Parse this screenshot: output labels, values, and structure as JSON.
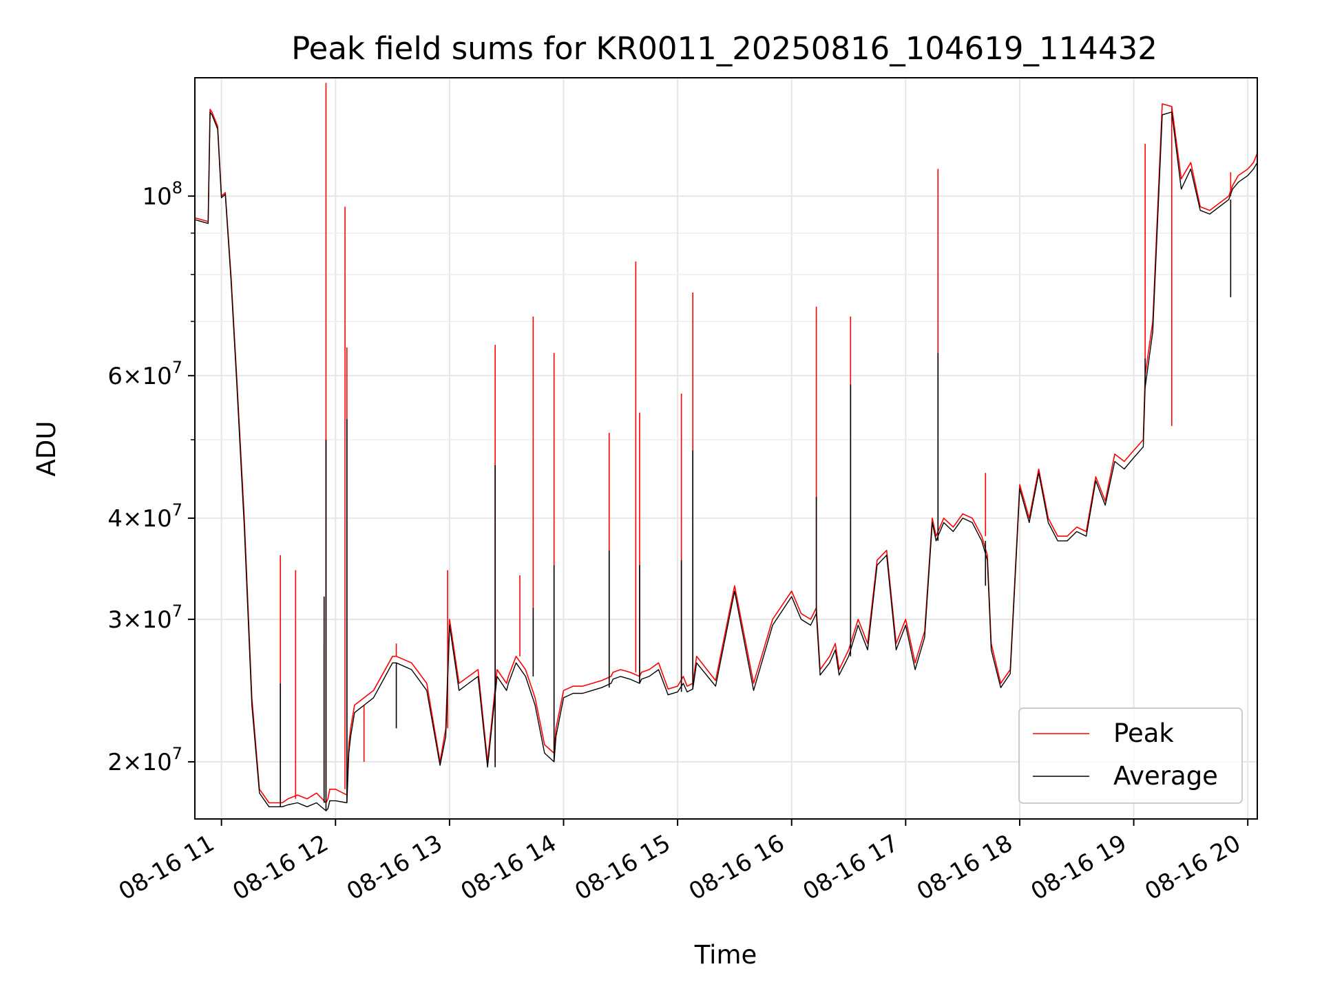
{
  "chart_data": {
    "type": "line",
    "title": "Peak field sums for KR0011_20250816_104619_114432",
    "xlabel": "Time",
    "ylabel": "ADU",
    "y_scale": "log",
    "ylim": [
      17000000,
      140000000
    ],
    "xlim": [
      "08-16 10:46",
      "08-16 20:05"
    ],
    "grid": true,
    "legend_position": "lower-right",
    "x_ticks": [
      "08-16 11",
      "08-16 12",
      "08-16 13",
      "08-16 14",
      "08-16 15",
      "08-16 16",
      "08-16 17",
      "08-16 18",
      "08-16 19",
      "08-16 20"
    ],
    "y_ticks_major": [
      {
        "value": 20000000,
        "mantissa": "2",
        "exponent": "7"
      },
      {
        "value": 30000000,
        "mantissa": "3",
        "exponent": "7"
      },
      {
        "value": 40000000,
        "mantissa": "4",
        "exponent": "7"
      },
      {
        "value": 60000000,
        "mantissa": "6",
        "exponent": "7"
      },
      {
        "value": 100000000,
        "mantissa": "",
        "exponent": "8"
      }
    ],
    "y_ticks_minor": [
      50000000,
      70000000,
      80000000,
      90000000
    ],
    "series": [
      {
        "name": "Peak",
        "color": "#ff0000",
        "x": [
          "08-16 10:46",
          "08-16 10:53",
          "08-16 10:54",
          "08-16 10:55",
          "08-16 10:58",
          "08-16 11:00",
          "08-16 11:02",
          "08-16 11:05",
          "08-16 11:08",
          "08-16 11:12",
          "08-16 11:16",
          "08-16 11:20",
          "08-16 11:25",
          "08-16 11:30",
          "08-16 11:32",
          "08-16 11:35",
          "08-16 11:40",
          "08-16 11:45",
          "08-16 11:50",
          "08-16 11:55",
          "08-16 11:56",
          "08-16 11:57",
          "08-16 12:00",
          "08-16 12:06",
          "08-16 12:07",
          "08-16 12:08",
          "08-16 12:10",
          "08-16 12:20",
          "08-16 12:30",
          "08-16 12:32",
          "08-16 12:40",
          "08-16 12:48",
          "08-16 12:55",
          "08-16 12:58",
          "08-16 13:00",
          "08-16 13:05",
          "08-16 13:10",
          "08-16 13:15",
          "08-16 13:20",
          "08-16 13:25",
          "08-16 13:30",
          "08-16 13:31",
          "08-16 13:35",
          "08-16 13:40",
          "08-16 13:45",
          "08-16 13:50",
          "08-16 13:55",
          "08-16 13:56",
          "08-16 14:00",
          "08-16 14:05",
          "08-16 14:10",
          "08-16 14:15",
          "08-16 14:20",
          "08-16 14:25",
          "08-16 14:26",
          "08-16 14:30",
          "08-16 14:35",
          "08-16 14:40",
          "08-16 14:41",
          "08-16 14:45",
          "08-16 14:50",
          "08-16 14:55",
          "08-16 15:00",
          "08-16 15:03",
          "08-16 15:05",
          "08-16 15:08",
          "08-16 15:10",
          "08-16 15:20",
          "08-16 15:30",
          "08-16 15:40",
          "08-16 15:50",
          "08-16 16:00",
          "08-16 16:05",
          "08-16 16:10",
          "08-16 16:13",
          "08-16 16:15",
          "08-16 16:20",
          "08-16 16:23",
          "08-16 16:25",
          "08-16 16:30",
          "08-16 16:35",
          "08-16 16:40",
          "08-16 16:45",
          "08-16 16:50",
          "08-16 16:55",
          "08-16 17:00",
          "08-16 17:05",
          "08-16 17:10",
          "08-16 17:14",
          "08-16 17:16",
          "08-16 17:20",
          "08-16 17:25",
          "08-16 17:30",
          "08-16 17:35",
          "08-16 17:40",
          "08-16 17:43",
          "08-16 17:45",
          "08-16 17:50",
          "08-16 17:55",
          "08-16 18:00",
          "08-16 18:05",
          "08-16 18:10",
          "08-16 18:15",
          "08-16 18:20",
          "08-16 18:25",
          "08-16 18:30",
          "08-16 18:35",
          "08-16 18:40",
          "08-16 18:45",
          "08-16 18:50",
          "08-16 18:55",
          "08-16 19:00",
          "08-16 19:05",
          "08-16 19:06",
          "08-16 19:10",
          "08-16 19:15",
          "08-16 19:20",
          "08-16 19:25",
          "08-16 19:30",
          "08-16 19:35",
          "08-16 19:40",
          "08-16 19:45",
          "08-16 19:50",
          "08-16 19:52",
          "08-16 19:55",
          "08-16 20:00",
          "08-16 20:03",
          "08-16 20:05"
        ],
        "values": [
          94000000,
          93000000,
          128000000,
          127000000,
          122000000,
          100000000,
          101000000,
          80000000,
          60000000,
          40000000,
          24000000,
          18500000,
          17800000,
          17800000,
          17800000,
          18000000,
          18200000,
          18000000,
          18300000,
          17800000,
          18000000,
          18500000,
          18500000,
          18200000,
          21000000,
          22000000,
          23500000,
          24500000,
          27000000,
          27000000,
          26500000,
          25000000,
          20000000,
          22000000,
          30000000,
          25000000,
          25500000,
          26000000,
          20000000,
          26000000,
          25000000,
          25500000,
          27000000,
          26000000,
          24000000,
          21000000,
          20500000,
          22000000,
          24500000,
          24800000,
          24800000,
          25000000,
          25200000,
          25500000,
          25800000,
          26000000,
          25800000,
          25500000,
          25800000,
          26000000,
          26500000,
          24600000,
          24800000,
          25500000,
          24800000,
          25000000,
          27000000,
          25200000,
          33000000,
          25000000,
          30000000,
          32500000,
          30500000,
          30000000,
          31000000,
          26000000,
          27000000,
          28000000,
          26000000,
          27500000,
          30000000,
          28000000,
          35500000,
          36500000,
          28000000,
          30000000,
          26500000,
          29000000,
          40000000,
          38000000,
          40000000,
          39000000,
          40500000,
          40000000,
          38000000,
          36000000,
          28000000,
          25000000,
          26000000,
          44000000,
          40000000,
          46000000,
          40000000,
          38000000,
          38000000,
          39000000,
          38500000,
          45000000,
          42000000,
          48000000,
          47000000,
          48500000,
          50000000,
          60000000,
          70000000,
          130000000,
          129000000,
          105000000,
          110000000,
          97000000,
          96000000,
          98000000,
          100000000,
          103000000,
          106000000,
          108000000,
          110000000,
          113000000
        ],
        "spikes": [
          {
            "x": "08-16 11:31",
            "value": 36000000
          },
          {
            "x": "08-16 11:39",
            "value": 34500000
          },
          {
            "x": "08-16 11:54",
            "value": 28000000
          },
          {
            "x": "08-16 11:55",
            "value": 138000000
          },
          {
            "x": "08-16 12:05",
            "value": 97000000
          },
          {
            "x": "08-16 12:06",
            "value": 65000000
          },
          {
            "x": "08-16 12:15",
            "value": 20000000
          },
          {
            "x": "08-16 12:32",
            "value": 28000000
          },
          {
            "x": "08-16 12:59",
            "value": 34500000
          },
          {
            "x": "08-16 13:24",
            "value": 65500000
          },
          {
            "x": "08-16 13:37",
            "value": 34000000
          },
          {
            "x": "08-16 13:44",
            "value": 71000000
          },
          {
            "x": "08-16 13:55",
            "value": 64000000
          },
          {
            "x": "08-16 14:24",
            "value": 51000000
          },
          {
            "x": "08-16 14:38",
            "value": 83000000
          },
          {
            "x": "08-16 14:40",
            "value": 54000000
          },
          {
            "x": "08-16 15:02",
            "value": 57000000
          },
          {
            "x": "08-16 15:08",
            "value": 76000000
          },
          {
            "x": "08-16 16:13",
            "value": 73000000
          },
          {
            "x": "08-16 16:31",
            "value": 71000000
          },
          {
            "x": "08-16 17:17",
            "value": 108000000
          },
          {
            "x": "08-16 17:42",
            "value": 45500000
          },
          {
            "x": "08-16 19:06",
            "value": 116000000
          },
          {
            "x": "08-16 19:20",
            "value": 52000000
          },
          {
            "x": "08-16 19:51",
            "value": 107000000
          }
        ]
      },
      {
        "name": "Average",
        "color": "#000000",
        "x": [
          "08-16 10:46",
          "08-16 10:53",
          "08-16 10:54",
          "08-16 10:55",
          "08-16 10:58",
          "08-16 11:00",
          "08-16 11:02",
          "08-16 11:05",
          "08-16 11:08",
          "08-16 11:12",
          "08-16 11:16",
          "08-16 11:20",
          "08-16 11:25",
          "08-16 11:30",
          "08-16 11:32",
          "08-16 11:35",
          "08-16 11:40",
          "08-16 11:45",
          "08-16 11:50",
          "08-16 11:55",
          "08-16 11:56",
          "08-16 11:57",
          "08-16 12:00",
          "08-16 12:06",
          "08-16 12:07",
          "08-16 12:08",
          "08-16 12:10",
          "08-16 12:20",
          "08-16 12:30",
          "08-16 12:32",
          "08-16 12:40",
          "08-16 12:48",
          "08-16 12:55",
          "08-16 12:58",
          "08-16 13:00",
          "08-16 13:05",
          "08-16 13:10",
          "08-16 13:15",
          "08-16 13:20",
          "08-16 13:25",
          "08-16 13:30",
          "08-16 13:31",
          "08-16 13:35",
          "08-16 13:40",
          "08-16 13:45",
          "08-16 13:50",
          "08-16 13:55",
          "08-16 13:56",
          "08-16 14:00",
          "08-16 14:05",
          "08-16 14:10",
          "08-16 14:15",
          "08-16 14:20",
          "08-16 14:25",
          "08-16 14:26",
          "08-16 14:30",
          "08-16 14:35",
          "08-16 14:40",
          "08-16 14:41",
          "08-16 14:45",
          "08-16 14:50",
          "08-16 14:55",
          "08-16 15:00",
          "08-16 15:03",
          "08-16 15:05",
          "08-16 15:08",
          "08-16 15:10",
          "08-16 15:20",
          "08-16 15:30",
          "08-16 15:40",
          "08-16 15:50",
          "08-16 16:00",
          "08-16 16:05",
          "08-16 16:10",
          "08-16 16:13",
          "08-16 16:15",
          "08-16 16:20",
          "08-16 16:23",
          "08-16 16:25",
          "08-16 16:30",
          "08-16 16:35",
          "08-16 16:40",
          "08-16 16:45",
          "08-16 16:50",
          "08-16 16:55",
          "08-16 17:00",
          "08-16 17:05",
          "08-16 17:10",
          "08-16 17:14",
          "08-16 17:16",
          "08-16 17:20",
          "08-16 17:25",
          "08-16 17:30",
          "08-16 17:35",
          "08-16 17:40",
          "08-16 17:43",
          "08-16 17:45",
          "08-16 17:50",
          "08-16 17:55",
          "08-16 18:00",
          "08-16 18:05",
          "08-16 18:10",
          "08-16 18:15",
          "08-16 18:20",
          "08-16 18:25",
          "08-16 18:30",
          "08-16 18:35",
          "08-16 18:40",
          "08-16 18:45",
          "08-16 18:50",
          "08-16 18:55",
          "08-16 19:00",
          "08-16 19:05",
          "08-16 19:06",
          "08-16 19:10",
          "08-16 19:15",
          "08-16 19:20",
          "08-16 19:25",
          "08-16 19:30",
          "08-16 19:35",
          "08-16 19:40",
          "08-16 19:45",
          "08-16 19:50",
          "08-16 19:52",
          "08-16 19:55",
          "08-16 20:00",
          "08-16 20:03",
          "08-16 20:05"
        ],
        "values": [
          93500000,
          92500000,
          127000000,
          126000000,
          121000000,
          99500000,
          100500000,
          79000000,
          59000000,
          39000000,
          23500000,
          18300000,
          17600000,
          17600000,
          17600000,
          17700000,
          17800000,
          17600000,
          17800000,
          17400000,
          17500000,
          17900000,
          17900000,
          17800000,
          20500000,
          21500000,
          23000000,
          24000000,
          26500000,
          26500000,
          26000000,
          24500000,
          19800000,
          21500000,
          29500000,
          24500000,
          25000000,
          25500000,
          19700000,
          25500000,
          24500000,
          25000000,
          26500000,
          25500000,
          23500000,
          20500000,
          20000000,
          21500000,
          24000000,
          24300000,
          24300000,
          24500000,
          24700000,
          25000000,
          25300000,
          25500000,
          25300000,
          25000000,
          25300000,
          25500000,
          26000000,
          24200000,
          24400000,
          25000000,
          24400000,
          24600000,
          26500000,
          24800000,
          32500000,
          24500000,
          29500000,
          32000000,
          30000000,
          29500000,
          30500000,
          25600000,
          26500000,
          27500000,
          25600000,
          27000000,
          29500000,
          27500000,
          35000000,
          36000000,
          27500000,
          29500000,
          26000000,
          28500000,
          39500000,
          37500000,
          39500000,
          38500000,
          40000000,
          39500000,
          37500000,
          35500000,
          27500000,
          24700000,
          25700000,
          43500000,
          39500000,
          45500000,
          39500000,
          37500000,
          37500000,
          38500000,
          38000000,
          44500000,
          41500000,
          47000000,
          46000000,
          47500000,
          49000000,
          58000000,
          68000000,
          126000000,
          127000000,
          102000000,
          108000000,
          96000000,
          95000000,
          97000000,
          99000000,
          102000000,
          104000000,
          106000000,
          108000000,
          110000000
        ],
        "spikes": [
          {
            "x": "08-16 11:31",
            "value": 25000000
          },
          {
            "x": "08-16 11:54",
            "value": 32000000
          },
          {
            "x": "08-16 11:55",
            "value": 50000000
          },
          {
            "x": "08-16 12:06",
            "value": 53000000
          },
          {
            "x": "08-16 12:32",
            "value": 22000000
          },
          {
            "x": "08-16 13:24",
            "value": 46500000
          },
          {
            "x": "08-16 13:44",
            "value": 31000000
          },
          {
            "x": "08-16 13:55",
            "value": 35000000
          },
          {
            "x": "08-16 14:24",
            "value": 36500000
          },
          {
            "x": "08-16 14:40",
            "value": 35000000
          },
          {
            "x": "08-16 15:02",
            "value": 35500000
          },
          {
            "x": "08-16 15:08",
            "value": 48500000
          },
          {
            "x": "08-16 16:13",
            "value": 42500000
          },
          {
            "x": "08-16 16:31",
            "value": 58500000
          },
          {
            "x": "08-16 17:17",
            "value": 64000000
          },
          {
            "x": "08-16 17:42",
            "value": 33000000
          },
          {
            "x": "08-16 19:06",
            "value": 63000000
          },
          {
            "x": "08-16 19:51",
            "value": 75000000
          }
        ]
      }
    ]
  }
}
